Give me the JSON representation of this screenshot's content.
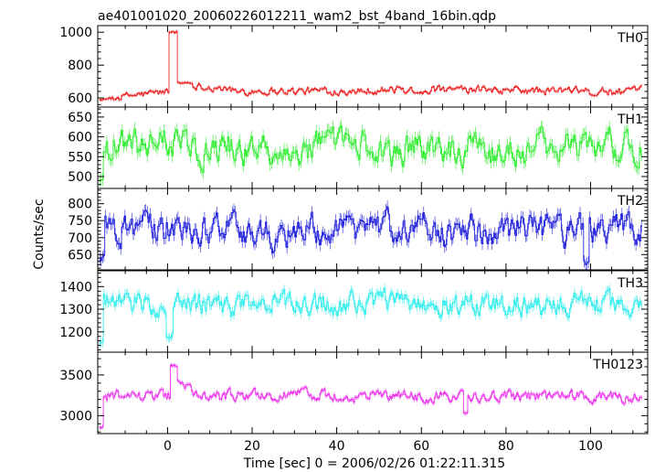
{
  "chart_data": {
    "type": "line",
    "title": "ae401001020_20060226012211_wam2_bst_4band_16bin.qdp",
    "xlabel": "Time [sec] 0 = 2006/02/26 01:22:11.315",
    "ylabel": "Counts/sec",
    "xlim": [
      -16.5,
      113.5
    ],
    "xticks": [
      0,
      20,
      40,
      60,
      80,
      100
    ],
    "panels": [
      {
        "name": "TH0",
        "color": "#ee2222",
        "ylim": [
          545,
          1040
        ],
        "yticks": [
          600,
          800,
          1000
        ],
        "base": 640,
        "noise": 22,
        "features": [
          {
            "type": "step",
            "from": -16,
            "to": -14,
            "value": 590
          },
          {
            "type": "ramp",
            "from": -14,
            "to": 0.5,
            "start": 600,
            "end": 640
          },
          {
            "type": "spike",
            "from": 0.5,
            "to": 2.2,
            "value": 1000
          },
          {
            "type": "step",
            "from": 2.2,
            "to": 6,
            "value": 690
          },
          {
            "type": "ramp",
            "from": 6,
            "to": 15,
            "start": 680,
            "end": 650
          }
        ]
      },
      {
        "name": "TH1",
        "color": "#33ee33",
        "ylim": [
          470,
          675
        ],
        "yticks": [
          500,
          550,
          600,
          650
        ],
        "base": 572,
        "noise": 35,
        "features": [
          {
            "type": "step",
            "from": -16,
            "to": -15.2,
            "value": 490
          }
        ]
      },
      {
        "name": "TH2",
        "color": "#2222dd",
        "ylim": [
          605,
          845
        ],
        "yticks": [
          650,
          700,
          750,
          800
        ],
        "base": 725,
        "noise": 40,
        "features": [
          {
            "type": "step",
            "from": -16,
            "to": -15,
            "value": 640
          },
          {
            "type": "step",
            "from": 98.5,
            "to": 99.5,
            "value": 630
          }
        ]
      },
      {
        "name": "TH3",
        "color": "#33eeee",
        "ylim": [
          1110,
          1470
        ],
        "yticks": [
          1200,
          1300,
          1400
        ],
        "base": 1325,
        "noise": 45,
        "features": [
          {
            "type": "step",
            "from": -16,
            "to": -15.2,
            "value": 1150
          },
          {
            "type": "step",
            "from": -0.2,
            "to": 1.2,
            "value": 1180
          }
        ]
      },
      {
        "name": "TH0123",
        "color": "#ee33ee",
        "ylim": [
          2780,
          3780
        ],
        "yticks": [
          3000,
          3500
        ],
        "base": 3240,
        "noise": 60,
        "features": [
          {
            "type": "step",
            "from": -16,
            "to": -15.2,
            "value": 2860
          },
          {
            "type": "spike",
            "from": 0.8,
            "to": 2.2,
            "value": 3620
          },
          {
            "type": "ramp",
            "from": 2.2,
            "to": 6,
            "start": 3450,
            "end": 3330
          },
          {
            "type": "step",
            "from": 70,
            "to": 71,
            "value": 3040
          }
        ]
      }
    ]
  }
}
